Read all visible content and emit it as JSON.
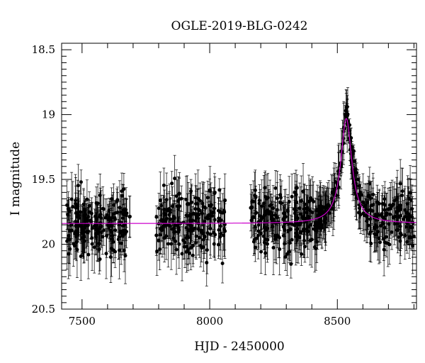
{
  "chart_data": {
    "type": "scatter",
    "title": "OGLE-2019-BLG-0242",
    "xlabel": "HJD - 2450000",
    "ylabel": "I magnitude",
    "xlim": [
      7420,
      8810
    ],
    "ylim": [
      20.5,
      18.45
    ],
    "y_inverted": true,
    "x_ticks": [
      7500,
      8000,
      8500
    ],
    "x_tick_labels": [
      "7500",
      "8000",
      "8500"
    ],
    "y_ticks": [
      18.5,
      19,
      19.5,
      20,
      20.5
    ],
    "y_tick_labels": [
      "18.5",
      "19",
      "19.5",
      "20",
      "20.5"
    ],
    "grid": false,
    "legend": "none",
    "point_color": "#000000",
    "model_color": "#cc00cc",
    "observing_seasons": [
      {
        "start": 7440,
        "end": 7690,
        "median_mag": 19.84,
        "scatter": 0.17
      },
      {
        "start": 7790,
        "end": 8060,
        "median_mag": 19.84,
        "scatter": 0.17
      },
      {
        "start": 8160,
        "end": 8420,
        "median_mag": 19.82,
        "scatter": 0.16
      },
      {
        "start": 8420,
        "end": 8800,
        "median_mag": 19.84,
        "scatter": 0.17
      }
    ],
    "model": {
      "baseline_mag": 19.84,
      "peak_mag": 19.03,
      "t0": 8535,
      "tE": 25
    },
    "series": [
      {
        "type": "line",
        "x": [
          7420,
          7700,
          8000,
          8200,
          8300,
          8380,
          8420,
          8450,
          8470,
          8490,
          8505,
          8515,
          8525,
          8530,
          8535,
          8540,
          8550,
          8560,
          8575,
          8590,
          8610,
          8640,
          8680,
          8730,
          8810
        ],
        "y": [
          19.84,
          19.84,
          19.84,
          19.84,
          19.83,
          19.82,
          19.79,
          19.74,
          19.65,
          19.5,
          19.33,
          19.18,
          19.07,
          19.04,
          19.03,
          19.04,
          19.1,
          19.2,
          19.38,
          19.52,
          19.65,
          19.74,
          19.79,
          19.82,
          19.84
        ]
      },
      {
        "type": "scatter",
        "name_hint": "peak",
        "x": [
          8530,
          8533,
          8536,
          8539,
          8542,
          8545,
          8548,
          8551,
          8554,
          8557,
          8560,
          8564,
          8568,
          8572,
          8576,
          8580,
          8585,
          8590,
          8596,
          8602,
          8610
        ],
        "y": [
          19.0,
          18.97,
          19.01,
          18.94,
          19.05,
          19.12,
          19.08,
          19.2,
          19.18,
          19.25,
          19.3,
          19.28,
          19.36,
          19.42,
          19.45,
          19.5,
          19.55,
          19.6,
          19.62,
          19.68,
          19.7
        ]
      }
    ]
  }
}
